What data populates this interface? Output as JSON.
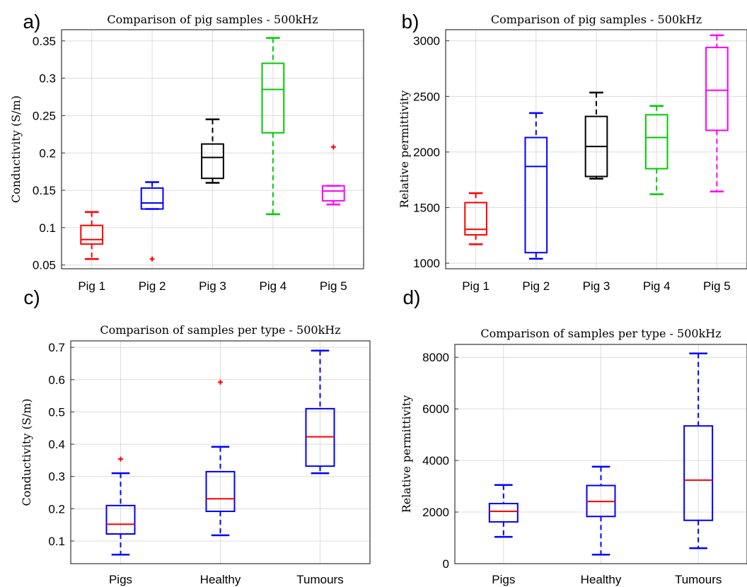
{
  "chart_data": [
    {
      "panel": "a)",
      "type": "box",
      "title": "Comparison of pig samples - 500kHz",
      "ylabel": "Conductivity (S/m)",
      "categories": [
        "Pig 1",
        "Pig 2",
        "Pig 3",
        "Pig 4",
        "Pig 5"
      ],
      "ylim": [
        0.045,
        0.365
      ],
      "yticks": [
        0.05,
        0.1,
        0.15,
        0.2,
        0.25,
        0.3,
        0.35
      ],
      "ytick_labels": [
        "0.05",
        "0.1",
        "0.15",
        "0.2",
        "0.25",
        "0.3",
        "0.35"
      ],
      "grid": true,
      "boxes": [
        {
          "min": 0.058,
          "q1": 0.078,
          "median": 0.084,
          "q3": 0.103,
          "max": 0.121,
          "outliers": [],
          "color": "#ff0000",
          "median_color": "#ff0000"
        },
        {
          "min": 0.125,
          "q1": 0.125,
          "median": 0.133,
          "q3": 0.153,
          "max": 0.161,
          "outliers": [
            0.058
          ],
          "color": "#0000ff",
          "median_color": "#0000ff"
        },
        {
          "min": 0.16,
          "q1": 0.166,
          "median": 0.194,
          "q3": 0.212,
          "max": 0.245,
          "outliers": [],
          "color": "#000000",
          "median_color": "#000000"
        },
        {
          "min": 0.118,
          "q1": 0.227,
          "median": 0.285,
          "q3": 0.32,
          "max": 0.354,
          "outliers": [],
          "color": "#00cc00",
          "median_color": "#00cc00"
        },
        {
          "min": 0.131,
          "q1": 0.136,
          "median": 0.149,
          "q3": 0.156,
          "max": 0.156,
          "outliers": [
            0.208
          ],
          "color": "#ff00ff",
          "median_color": "#ff00ff"
        }
      ]
    },
    {
      "panel": "b)",
      "type": "box",
      "title": "Comparison of pig samples - 500kHz",
      "ylabel": "Relative permittivity",
      "categories": [
        "Pig 1",
        "Pig 2",
        "Pig 3",
        "Pig 4",
        "Pig 5"
      ],
      "ylim": [
        950,
        3100
      ],
      "yticks": [
        1000,
        1500,
        2000,
        2500,
        3000
      ],
      "ytick_labels": [
        "1000",
        "1500",
        "2000",
        "2500",
        "3000"
      ],
      "grid": true,
      "boxes": [
        {
          "min": 1170,
          "q1": 1255,
          "median": 1305,
          "q3": 1545,
          "max": 1630,
          "outliers": [],
          "color": "#ff0000",
          "median_color": "#ff0000"
        },
        {
          "min": 1040,
          "q1": 1095,
          "median": 1870,
          "q3": 2130,
          "max": 2350,
          "outliers": [],
          "color": "#0000ff",
          "median_color": "#0000ff"
        },
        {
          "min": 1760,
          "q1": 1780,
          "median": 2050,
          "q3": 2320,
          "max": 2535,
          "outliers": [],
          "color": "#000000",
          "median_color": "#000000"
        },
        {
          "min": 1620,
          "q1": 1850,
          "median": 2130,
          "q3": 2335,
          "max": 2415,
          "outliers": [],
          "color": "#00cc00",
          "median_color": "#00cc00"
        },
        {
          "min": 1645,
          "q1": 2195,
          "median": 2555,
          "q3": 2940,
          "max": 3050,
          "outliers": [],
          "color": "#ff00ff",
          "median_color": "#ff00ff"
        }
      ]
    },
    {
      "panel": "c)",
      "type": "box",
      "title": "Comparison of samples per type - 500kHz",
      "ylabel": "Conductivity (S/m)",
      "categories": [
        "Pigs",
        "Healthy",
        "Tumours"
      ],
      "ylim": [
        0.03,
        0.72
      ],
      "yticks": [
        0.1,
        0.2,
        0.3,
        0.4,
        0.5,
        0.6,
        0.7
      ],
      "ytick_labels": [
        "0.1",
        "0.2",
        "0.3",
        "0.4",
        "0.5",
        "0.6",
        "0.7"
      ],
      "grid": true,
      "boxes": [
        {
          "min": 0.058,
          "q1": 0.122,
          "median": 0.152,
          "q3": 0.21,
          "max": 0.31,
          "outliers": [
            0.354
          ],
          "color": "#0000ff",
          "median_color": "#ff0000"
        },
        {
          "min": 0.118,
          "q1": 0.192,
          "median": 0.231,
          "q3": 0.315,
          "max": 0.392,
          "outliers": [
            0.592
          ],
          "color": "#0000ff",
          "median_color": "#ff0000"
        },
        {
          "min": 0.31,
          "q1": 0.332,
          "median": 0.423,
          "q3": 0.51,
          "max": 0.69,
          "outliers": [],
          "color": "#0000ff",
          "median_color": "#ff0000"
        }
      ]
    },
    {
      "panel": "d)",
      "type": "box",
      "title": "Comparison of samples per type - 500kHz",
      "ylabel": "Relative permittivity",
      "categories": [
        "Pigs",
        "Healthy",
        "Tumours"
      ],
      "ylim": [
        0,
        8500
      ],
      "yticks": [
        0,
        2000,
        4000,
        6000,
        8000
      ],
      "ytick_labels": [
        "0",
        "2000",
        "4000",
        "6000",
        "8000"
      ],
      "grid": true,
      "boxes": [
        {
          "min": 1040,
          "q1": 1620,
          "median": 2030,
          "q3": 2330,
          "max": 3050,
          "outliers": [],
          "color": "#0000ff",
          "median_color": "#ff0000"
        },
        {
          "min": 350,
          "q1": 1830,
          "median": 2410,
          "q3": 3030,
          "max": 3760,
          "outliers": [],
          "color": "#0000ff",
          "median_color": "#ff0000"
        },
        {
          "min": 600,
          "q1": 1680,
          "median": 3240,
          "q3": 5340,
          "max": 8150,
          "outliers": [],
          "color": "#0000ff",
          "median_color": "#ff0000"
        }
      ]
    }
  ]
}
